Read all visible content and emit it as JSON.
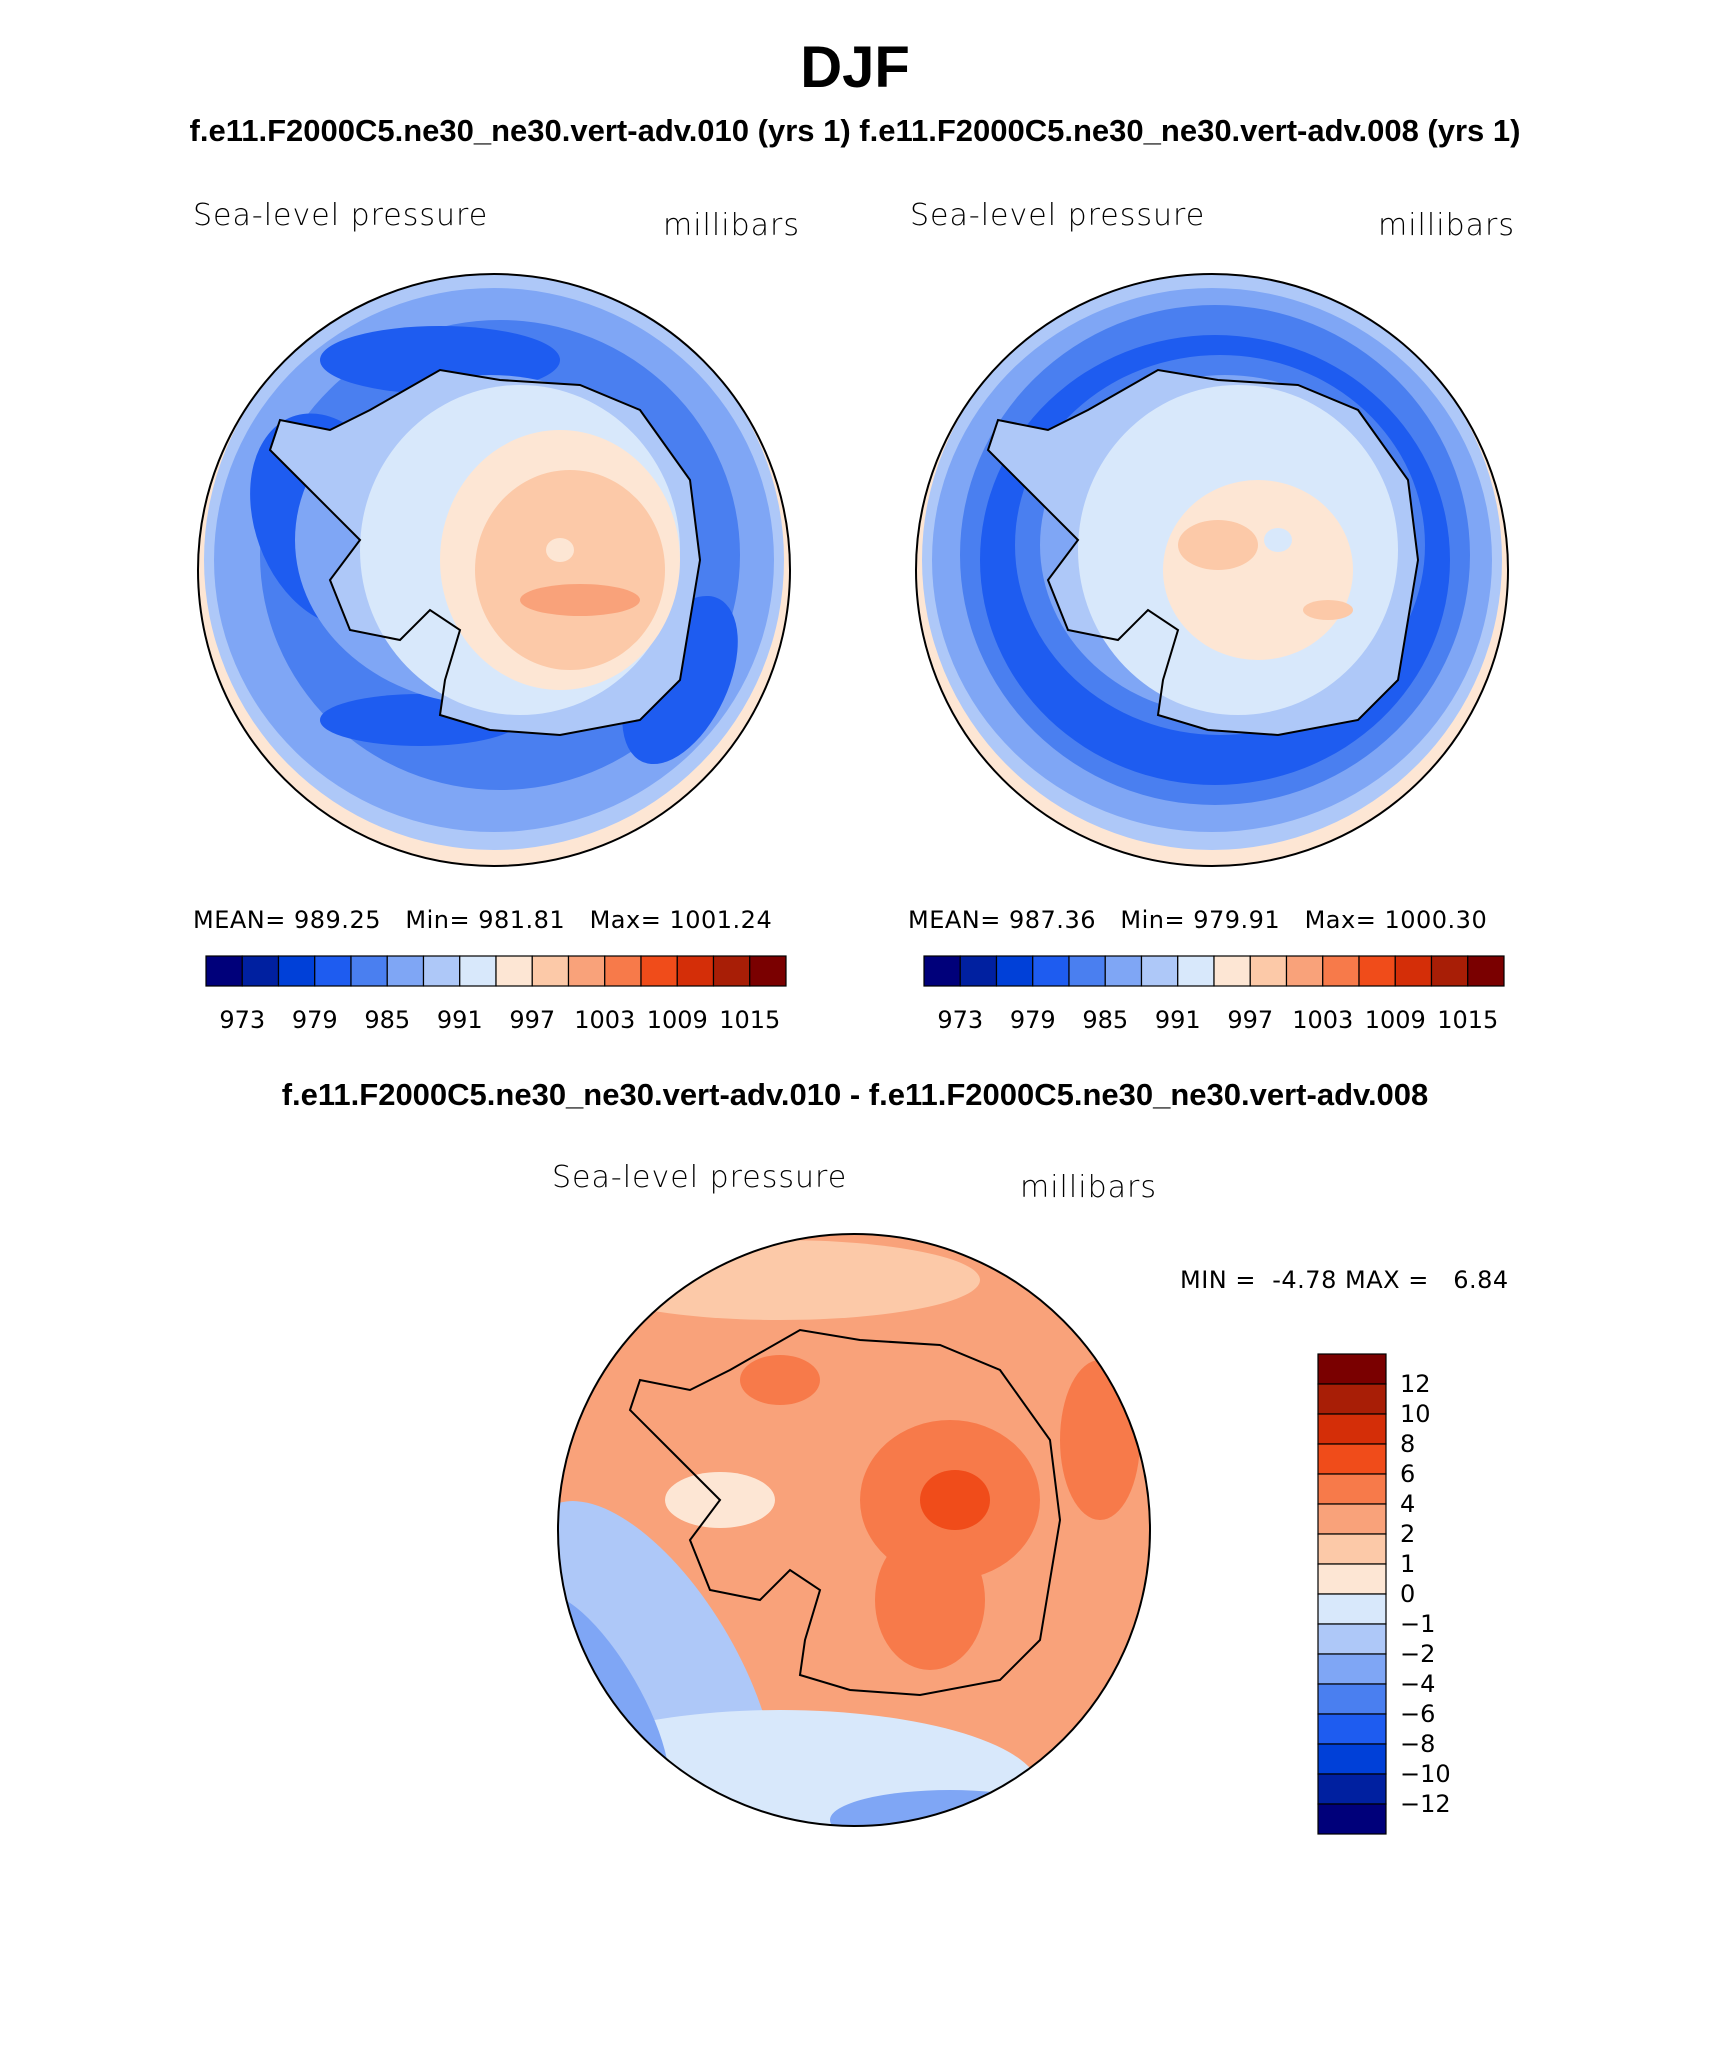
{
  "page": {
    "title": "DJF",
    "subtitle_top": "f.e11.F2000C5.ne30_ne30.vert-adv.010 (yrs 1)  f.e11.F2000C5.ne30_ne30.vert-adv.008 (yrs 1)",
    "subtitle_diff": "f.e11.F2000C5.ne30_ne30.vert-adv.010 - f.e11.F2000C5.ne30_ne30.vert-adv.008"
  },
  "colors": {
    "abs_scale": [
      "#00007a",
      "#0020a0",
      "#0040d8",
      "#1e5cf0",
      "#4a7ff0",
      "#7fa6f5",
      "#aec8f8",
      "#d8e8fb",
      "#fde6d4",
      "#fcc9a8",
      "#f9a27a",
      "#f77a4a",
      "#f04c1a",
      "#d42e08",
      "#a81e06",
      "#7a0000"
    ],
    "diff_scale": [
      "#00007a",
      "#0020a0",
      "#0040d8",
      "#1e5cf0",
      "#4a7ff0",
      "#7fa6f5",
      "#aec8f8",
      "#d8e8fb",
      "#fde6d4",
      "#fcc9a8",
      "#f9a27a",
      "#f77a4a",
      "#f04c1a",
      "#d42e08",
      "#a81e06",
      "#7a0000"
    ]
  },
  "chart_data": [
    {
      "type": "heatmap",
      "projection": "south polar stereographic",
      "title": "Sea-level pressure",
      "units": "millibars",
      "stats": {
        "mean_label": "MEAN=",
        "mean": "989.25",
        "min_label": "Min=",
        "min": "981.81",
        "max_label": "Max=",
        "max": "1001.24"
      },
      "colorbar_ticks": [
        "973",
        "979",
        "985",
        "991",
        "997",
        "1003",
        "1009",
        "1015"
      ],
      "levels": [
        970,
        973,
        976,
        979,
        982,
        985,
        988,
        991,
        994,
        997,
        1000,
        1003,
        1006,
        1009,
        1012,
        1015,
        1018
      ]
    },
    {
      "type": "heatmap",
      "projection": "south polar stereographic",
      "title": "Sea-level pressure",
      "units": "millibars",
      "stats": {
        "mean_label": "MEAN=",
        "mean": "987.36",
        "min_label": "Min=",
        "min": "979.91",
        "max_label": "Max=",
        "max": "1000.30"
      },
      "colorbar_ticks": [
        "973",
        "979",
        "985",
        "991",
        "997",
        "1003",
        "1009",
        "1015"
      ],
      "levels": [
        970,
        973,
        976,
        979,
        982,
        985,
        988,
        991,
        994,
        997,
        1000,
        1003,
        1006,
        1009,
        1012,
        1015,
        1018
      ]
    },
    {
      "type": "heatmap",
      "projection": "south polar stereographic",
      "title": "Sea-level pressure",
      "units": "millibars",
      "stats": {
        "min_label": "MIN =",
        "min": "-4.78",
        "max_label": "MAX =",
        "max": "6.84"
      },
      "colorbar_ticks": [
        "12",
        "10",
        "8",
        "6",
        "4",
        "2",
        "1",
        "0",
        "−1",
        "−2",
        "−4",
        "−6",
        "−8",
        "−10",
        "−12"
      ]
    }
  ]
}
